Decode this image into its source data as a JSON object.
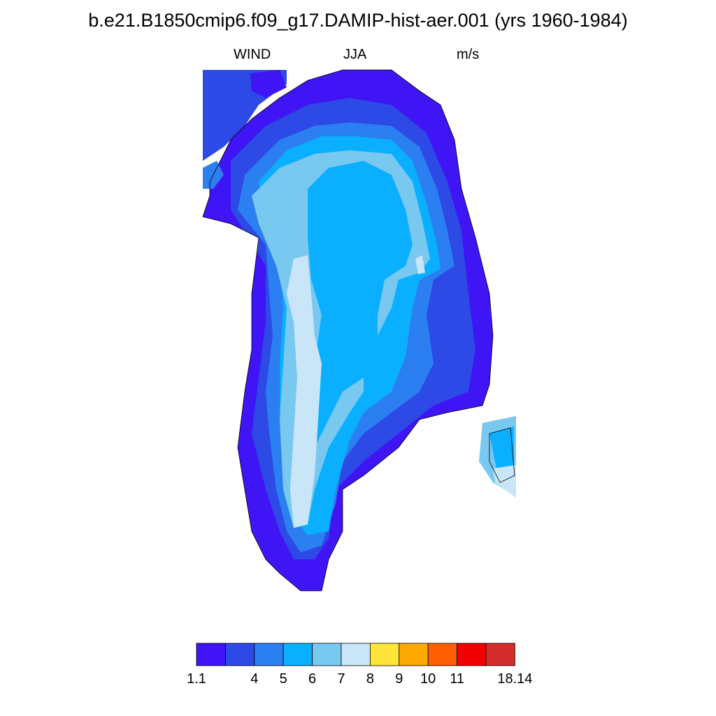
{
  "title": "b.e21.B1850cmip6.f09_g17.DAMIP-hist-aer.001 (yrs 1960-1984)",
  "subtitle": {
    "variable": "WIND",
    "season": "JJA",
    "units": "m/s"
  },
  "colorbar": {
    "colors": [
      "#3f14f5",
      "#2d49e6",
      "#2b7ff0",
      "#0aafff",
      "#78c8f0",
      "#c8e6f8",
      "#ffe43a",
      "#ffa800",
      "#ff5f00",
      "#f00000",
      "#d42d2d"
    ],
    "tick_labels": [
      "1.1",
      "4",
      "5",
      "6",
      "7",
      "8",
      "9",
      "10",
      "11",
      "18.14"
    ]
  },
  "map": {
    "region": "Greenland",
    "legend_levels": [
      "1.1",
      "4",
      "5",
      "6",
      "7",
      "8"
    ]
  }
}
